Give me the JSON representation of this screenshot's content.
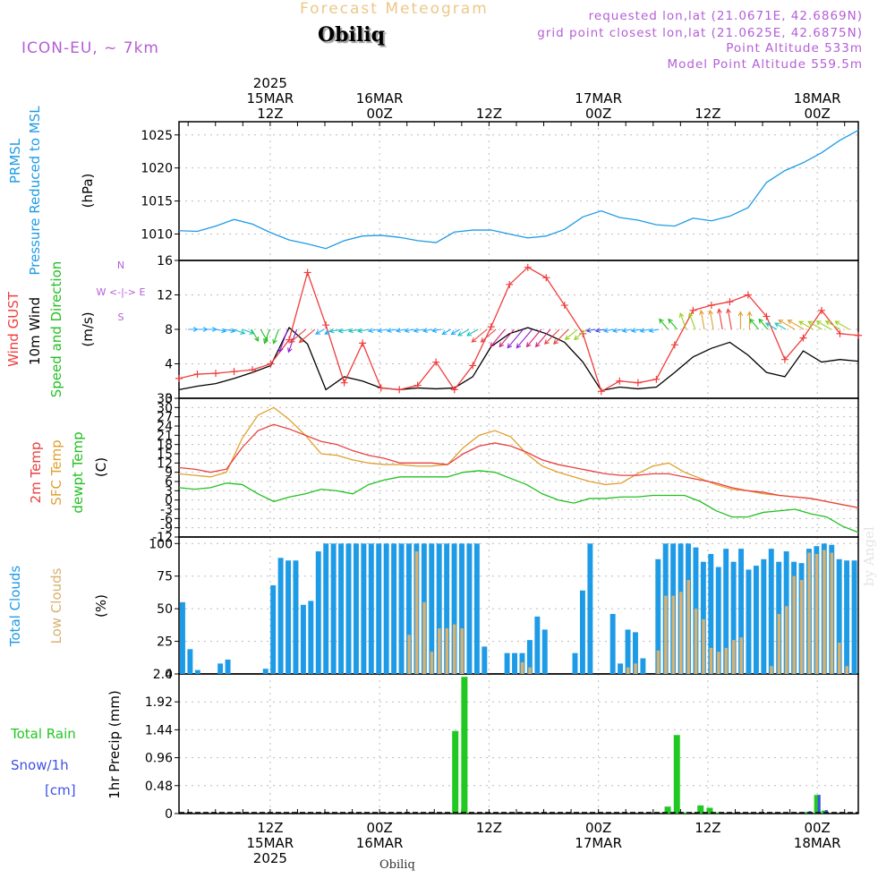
{
  "header": {
    "title": "Forecast Meteogram",
    "station": "Obiliq",
    "model": "ICON-EU, ~ 7km",
    "requested": "requested lon,lat (21.0671E, 42.6869N)",
    "gridpoint": "grid point closest lon,lat (21.0625E, 42.6875N)",
    "point_altitude": "Point Altitude 533m",
    "model_altitude": "Model Point Altitude 559.5m",
    "watermark": "by Angel",
    "bottom_station": "Obiliq"
  },
  "colors": {
    "pressure": "#1e9be6",
    "gust": "#f03c3c",
    "wind": "#000000",
    "temp2m": "#e84040",
    "sfc": "#e0a030",
    "dewpt": "#22c022",
    "total_clouds": "#1e9be6",
    "low_clouds": "#d8b070",
    "rain": "#22c822",
    "snow": "#3c50e6",
    "label_purple": "#b45ed6"
  },
  "chart_data": {
    "type": "meteogram",
    "time_axis": {
      "step_hours": 3,
      "top_ticks": [
        {
          "hour": 12,
          "lines": [
            "2025",
            "15MAR",
            "12Z"
          ]
        },
        {
          "hour": 24,
          "lines": [
            "16MAR",
            "00Z"
          ]
        },
        {
          "hour": 36,
          "lines": [
            "12Z"
          ]
        },
        {
          "hour": 48,
          "lines": [
            "17MAR",
            "00Z"
          ]
        },
        {
          "hour": 60,
          "lines": [
            "12Z"
          ]
        },
        {
          "hour": 72,
          "lines": [
            "18MAR",
            "00Z"
          ]
        }
      ],
      "bottom_ticks": [
        {
          "hour": 12,
          "lines": [
            "12Z",
            "15MAR",
            "2025"
          ]
        },
        {
          "hour": 24,
          "lines": [
            "00Z",
            "16MAR"
          ]
        },
        {
          "hour": 36,
          "lines": [
            "12Z"
          ]
        },
        {
          "hour": 48,
          "lines": [
            "00Z",
            "17MAR"
          ]
        },
        {
          "hour": 60,
          "lines": [
            "12Z"
          ]
        },
        {
          "hour": 72,
          "lines": [
            "00Z",
            "18MAR"
          ]
        }
      ]
    },
    "panels": {
      "pressure": {
        "label": "PRMSL",
        "sublabel": "Pressure Reduced to MSL",
        "unit": "(hPa)",
        "ylim": [
          1006,
          1027
        ],
        "yticks": [
          1010,
          1015,
          1020,
          1025
        ],
        "values": [
          1010.5,
          1010.4,
          1011.2,
          1012.2,
          1011.5,
          1010.2,
          1009.1,
          1008.5,
          1007.8,
          1009.0,
          1009.7,
          1009.8,
          1009.5,
          1009.0,
          1008.7,
          1010.3,
          1010.6,
          1010.6,
          1010.0,
          1009.4,
          1009.7,
          1010.7,
          1012.6,
          1013.5,
          1012.5,
          1012.1,
          1011.4,
          1011.2,
          1012.4,
          1012.0,
          1012.7,
          1014.0,
          1017.8,
          1019.6,
          1020.8,
          1022.3,
          1024.2,
          1025.7
        ]
      },
      "wind": {
        "label_gust": "Wind GUST",
        "label_wind": "10m Wind",
        "label_dir": "Speed and Direction",
        "unit": "(m/s)",
        "compass_n": "N",
        "compass_s": "S",
        "compass_we": "W <-|-> E",
        "ylim": [
          0,
          16
        ],
        "yticks": [
          0,
          4,
          8,
          12,
          16
        ],
        "gust": [
          2.3,
          2.8,
          2.9,
          3.1,
          3.3,
          4.0,
          6.8,
          14.6,
          8.5,
          1.8,
          6.4,
          1.2,
          1.0,
          1.5,
          4.2,
          1.0,
          3.8,
          8.3,
          13.2,
          15.2,
          14.0,
          10.8,
          7.5,
          0.8,
          2.0,
          1.8,
          2.2,
          6.2,
          10.2,
          10.8,
          11.2,
          12.0,
          9.5,
          4.5,
          7.0,
          10.2,
          7.5,
          7.3
        ],
        "speed": [
          1.0,
          1.4,
          1.7,
          2.3,
          3.0,
          3.8,
          8.2,
          6.3,
          1.0,
          2.5,
          2.0,
          1.2,
          1.0,
          1.2,
          1.1,
          1.2,
          2.5,
          6.0,
          7.5,
          8.2,
          7.5,
          6.5,
          4.2,
          0.9,
          1.3,
          1.1,
          1.3,
          3.0,
          4.8,
          5.8,
          6.5,
          5.0,
          3.0,
          2.5,
          5.5,
          4.2,
          4.5,
          4.3
        ],
        "direction": [
          90,
          90,
          100,
          110,
          150,
          200,
          200,
          230,
          240,
          260,
          260,
          260,
          260,
          260,
          260,
          240,
          240,
          230,
          220,
          220,
          220,
          225,
          230,
          260,
          260,
          260,
          260,
          320,
          340,
          350,
          350,
          0,
          320,
          300,
          300,
          300,
          300,
          300
        ]
      },
      "temperature": {
        "label_2m": "2m Temp",
        "label_sfc": "SFC Temp",
        "label_dew": "dewpt Temp",
        "unit": "(C)",
        "ylim": [
          -12,
          33
        ],
        "yticks": [
          -12,
          -9,
          -6,
          -3,
          0,
          3,
          6,
          9,
          12,
          15,
          18,
          21,
          24,
          27,
          30,
          33
        ],
        "t2m": [
          10.5,
          10.0,
          9.0,
          10.0,
          17.0,
          22.5,
          24.5,
          23.0,
          21.0,
          19.0,
          18.0,
          16.0,
          14.5,
          13.5,
          12.0,
          12.0,
          12.0,
          11.5,
          15.0,
          17.5,
          18.5,
          17.5,
          15.5,
          13.0,
          11.5,
          10.5,
          9.5,
          8.5,
          8.0,
          8.0,
          8.5,
          8.5,
          7.5,
          6.5,
          5.5,
          4.0,
          3.0,
          2.5,
          1.5,
          1.0,
          0.5,
          -0.5,
          -1.5,
          -2.5
        ],
        "sfc": [
          8.5,
          8.0,
          7.5,
          9.0,
          20.0,
          27.5,
          30.0,
          26.0,
          21.0,
          15.0,
          14.5,
          13.0,
          12.0,
          11.5,
          11.5,
          11.0,
          11.0,
          11.5,
          17.0,
          21.0,
          22.5,
          20.5,
          15.0,
          11.0,
          9.0,
          7.5,
          6.0,
          5.0,
          5.5,
          8.5,
          11.0,
          12.0,
          9.0,
          7.0,
          5.0,
          3.5,
          3.0,
          2.0,
          1.5,
          1.0,
          0.5,
          -0.5,
          -1.5,
          -2.5
        ],
        "dew": [
          4.0,
          3.5,
          4.0,
          5.5,
          5.0,
          2.0,
          -0.5,
          1.0,
          2.0,
          3.5,
          3.0,
          2.0,
          5.0,
          6.5,
          7.5,
          7.5,
          7.5,
          7.5,
          9.0,
          9.5,
          9.0,
          7.0,
          5.0,
          2.0,
          0.0,
          -1.0,
          0.5,
          0.5,
          1.0,
          1.0,
          1.5,
          1.5,
          1.5,
          -0.5,
          -3.5,
          -5.5,
          -5.5,
          -4.0,
          -3.5,
          -3.0,
          -4.5,
          -5.5,
          -8.5,
          -10.5
        ]
      },
      "clouds": {
        "label_total": "Total Clouds",
        "label_low": "Low Clouds",
        "unit": "(%)",
        "ylim": [
          0,
          105
        ],
        "yticks": [
          0,
          25,
          50,
          75,
          100
        ],
        "total": [
          55,
          19,
          3,
          0,
          0,
          8,
          11,
          0,
          0,
          0,
          0,
          4,
          68,
          89,
          87,
          87,
          53,
          56,
          94,
          100,
          100,
          100,
          100,
          100,
          100,
          100,
          100,
          100,
          100,
          100,
          100,
          100,
          100,
          100,
          100,
          100,
          100,
          100,
          100,
          100,
          21,
          0,
          0,
          16,
          16,
          16,
          26,
          44,
          34,
          0,
          0,
          0,
          16,
          64,
          100,
          0,
          0,
          46,
          8,
          34,
          32,
          12,
          0,
          88,
          100,
          100,
          100,
          100,
          97,
          86,
          92,
          82,
          96,
          86,
          96,
          80,
          83,
          88,
          96,
          86,
          94,
          86,
          85,
          96,
          98,
          100,
          99,
          88,
          87,
          87
        ],
        "low": [
          0,
          0,
          0,
          0,
          0,
          0,
          0,
          0,
          0,
          0,
          0,
          0,
          0,
          0,
          0,
          0,
          0,
          0,
          0,
          0,
          0,
          0,
          0,
          0,
          0,
          0,
          0,
          0,
          0,
          0,
          30,
          94,
          55,
          17,
          35,
          35,
          38,
          35,
          0,
          0,
          0,
          0,
          0,
          0,
          0,
          9,
          5,
          0,
          0,
          0,
          0,
          0,
          0,
          0,
          0,
          0,
          0,
          0,
          0,
          5,
          8,
          0,
          0,
          18,
          60,
          60,
          63,
          72,
          50,
          42,
          20,
          17,
          20,
          26,
          28,
          0,
          0,
          0,
          6,
          46,
          52,
          75,
          72,
          93,
          92,
          95,
          93,
          24,
          6,
          0
        ]
      },
      "precip": {
        "label_rain": "Total  Rain",
        "label_snow": "Snow/1h",
        "label_cm": "[cm]",
        "unit": "1hr Precip (mm)",
        "ylim": [
          0,
          2.4
        ],
        "yticks": [
          0,
          0.48,
          0.96,
          1.44,
          1.92,
          2.4
        ],
        "rain_bars": [
          {
            "hour": 32.3,
            "value": 1.42
          },
          {
            "hour": 33.3,
            "value": 2.35
          },
          {
            "hour": 55.6,
            "value": 0.12
          },
          {
            "hour": 56.6,
            "value": 1.35
          },
          {
            "hour": 57.6,
            "value": 0.02
          },
          {
            "hour": 59.2,
            "value": 0.14
          },
          {
            "hour": 60.2,
            "value": 0.1
          },
          {
            "hour": 61.0,
            "value": 0.02
          },
          {
            "hour": 71.0,
            "value": 0.03
          },
          {
            "hour": 72.0,
            "value": 0.32
          },
          {
            "hour": 72.8,
            "value": 0.05
          }
        ],
        "snow_bars": [
          {
            "hour": 71.2,
            "value": 0.04
          },
          {
            "hour": 72.2,
            "value": 0.32
          },
          {
            "hour": 73.0,
            "value": 0.06
          }
        ]
      }
    }
  }
}
